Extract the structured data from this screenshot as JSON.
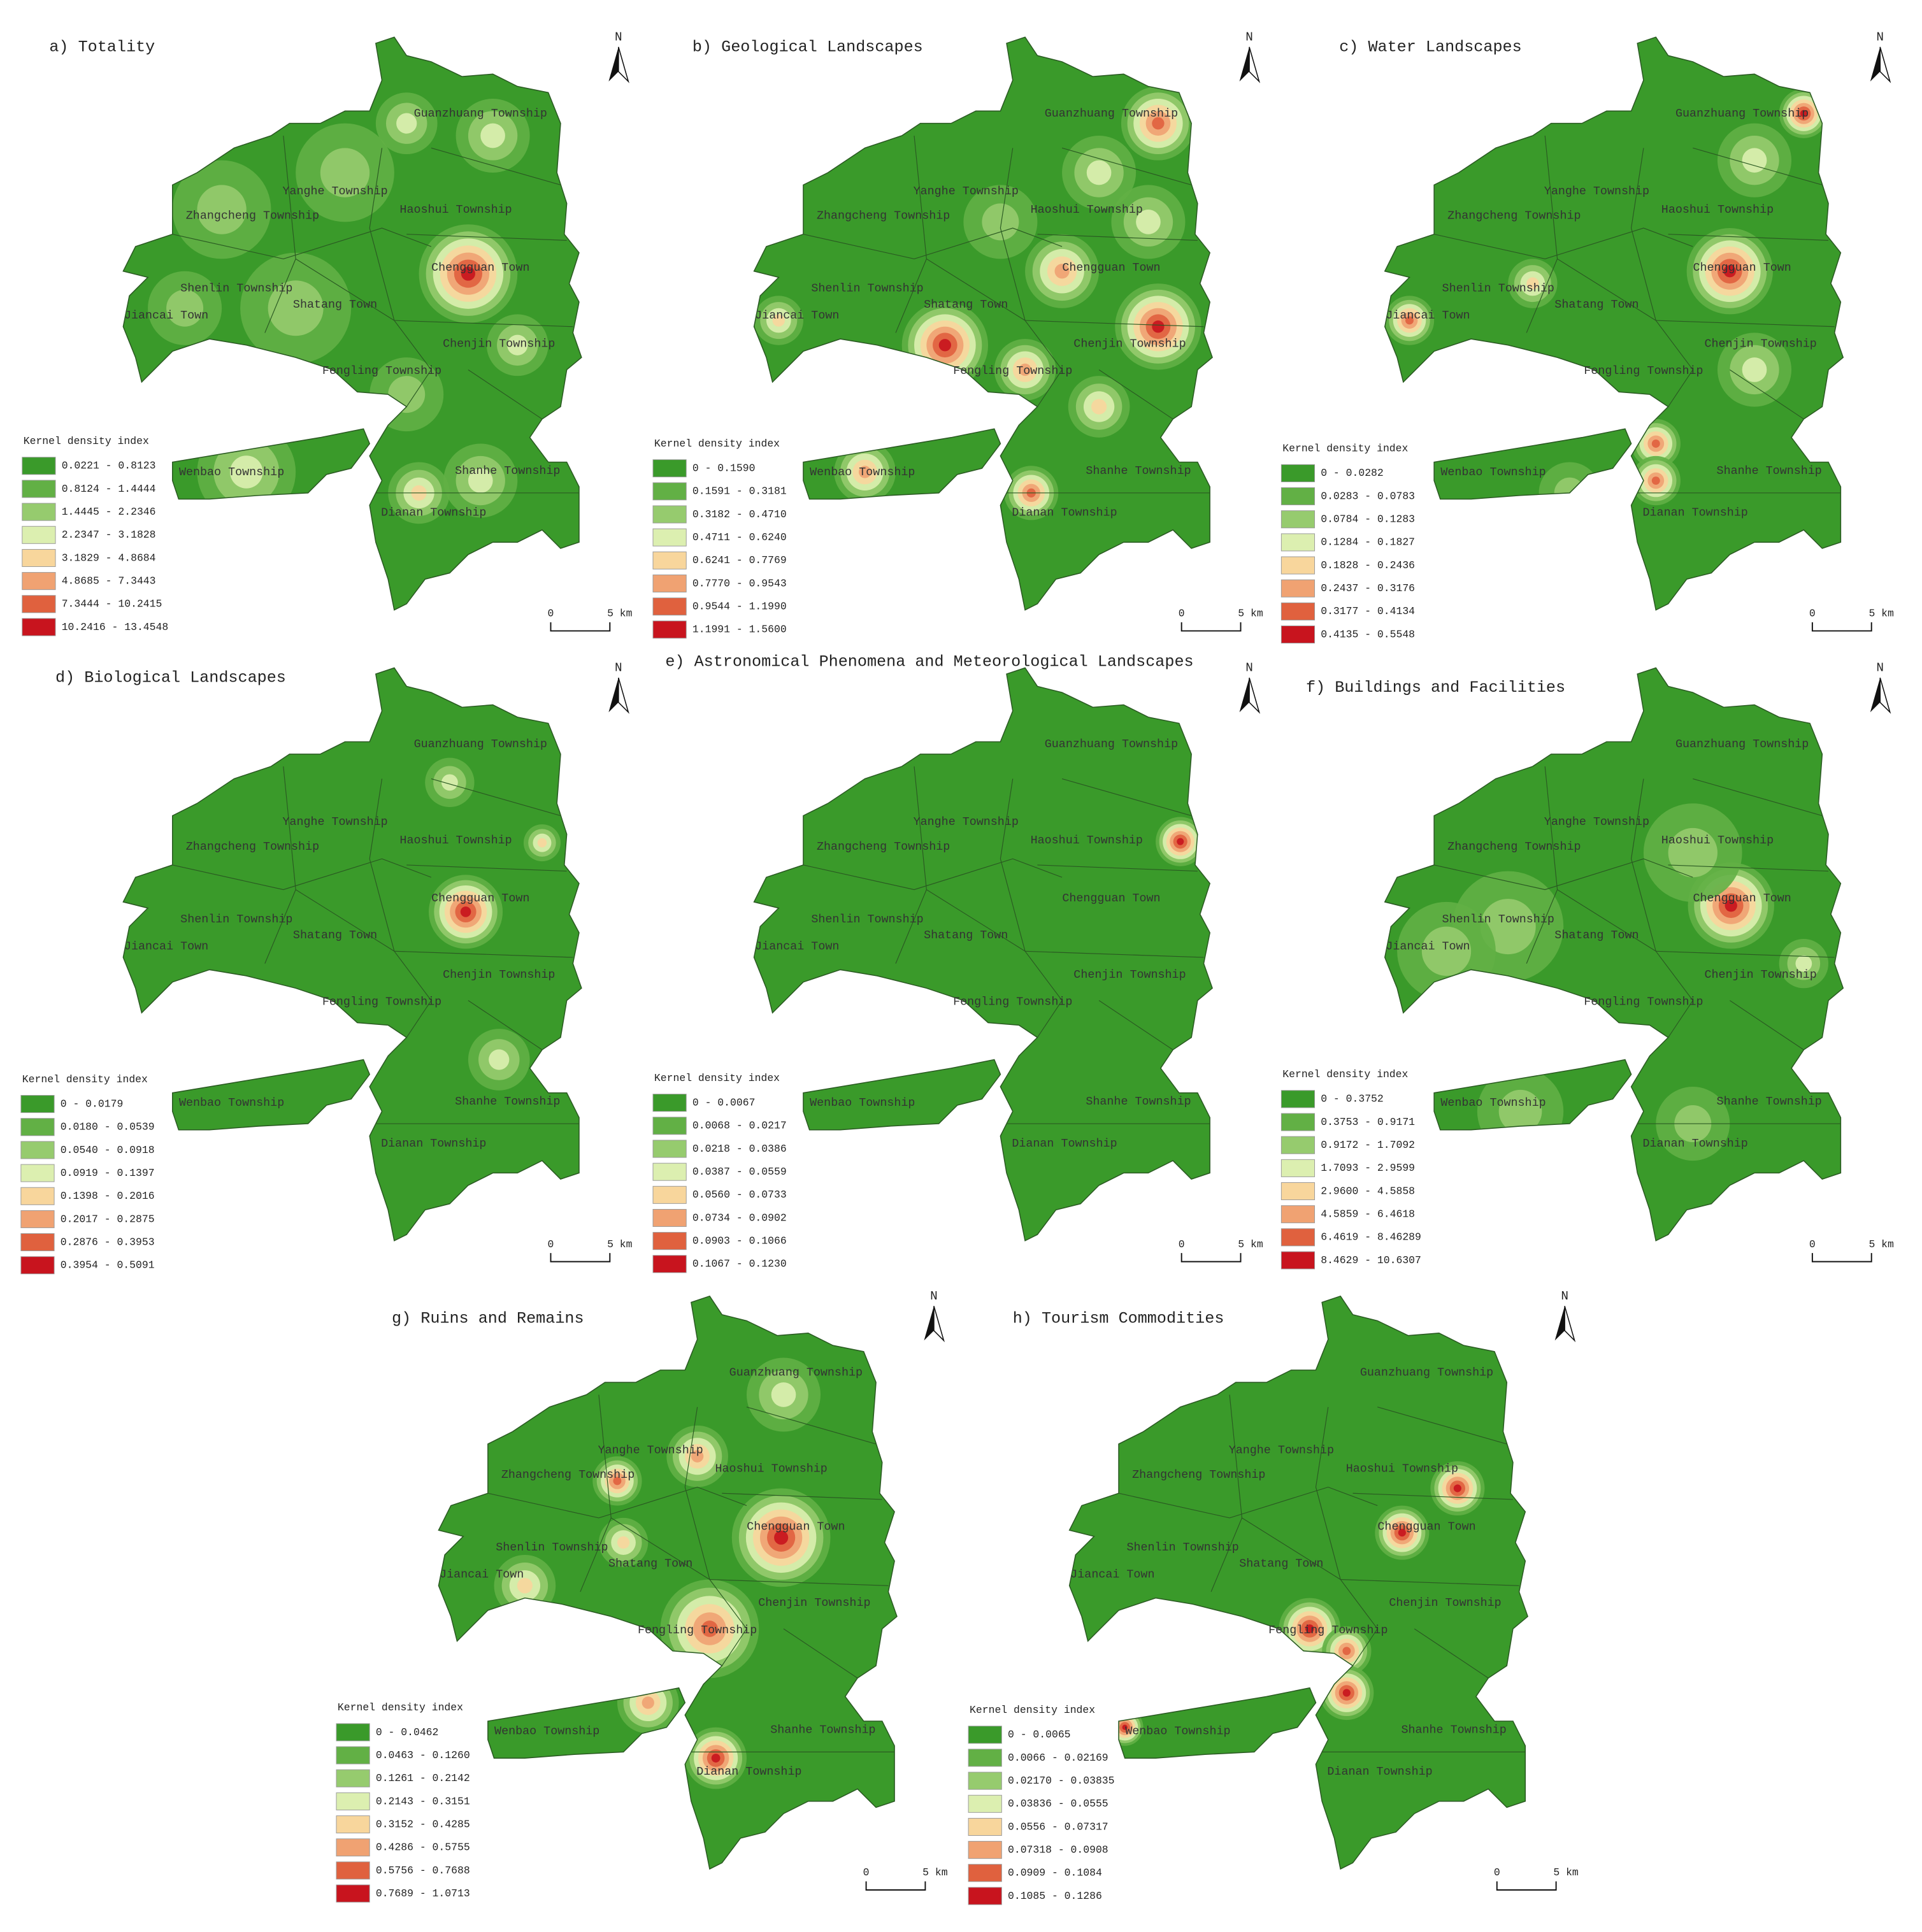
{
  "townships": [
    "Guanzhuang Township",
    "Yanghe Township",
    "Zhangcheng Township",
    "Haoshui Township",
    "Chengguan Town",
    "Shenlin Township",
    "Shatang Town",
    "Jiancai Town",
    "Chenjin Township",
    "Fengling Township",
    "Wenbao Township",
    "Shanhe Township",
    "Dianan Township"
  ],
  "north": "N",
  "scale": {
    "zero": "0",
    "length": "5 km"
  },
  "legend_title": "Kernel density index",
  "legend_colors": [
    "#3a9a2a",
    "#62b045",
    "#96cb6e",
    "#dcefb0",
    "#f8d69c",
    "#f0a272",
    "#e0613e",
    "#c8141e"
  ],
  "panels": [
    {
      "title": "a) Totality",
      "legend": [
        "0.0221 - 0.8123",
        "0.8124 - 1.4444",
        "1.4445 - 2.2346",
        "2.2347 - 3.1828",
        "3.1829 - 4.8684",
        "4.8685 - 7.3443",
        "7.3444 - 10.2415",
        "10.2416 - 13.4548"
      ]
    },
    {
      "title": "b) Geological Landscapes",
      "legend": [
        "0 - 0.1590",
        "0.1591 - 0.3181",
        "0.3182 - 0.4710",
        "0.4711 - 0.6240",
        "0.6241 - 0.7769",
        "0.7770 - 0.9543",
        "0.9544 - 1.1990",
        "1.1991 - 1.5600"
      ]
    },
    {
      "title": "c) Water Landscapes",
      "legend": [
        "0 - 0.0282",
        "0.0283 - 0.0783",
        "0.0784 - 0.1283",
        "0.1284 - 0.1827",
        "0.1828 - 0.2436",
        "0.2437 - 0.3176",
        "0.3177 - 0.4134",
        "0.4135 - 0.5548"
      ]
    },
    {
      "title": "d) Biological Landscapes",
      "legend": [
        "0 - 0.0179",
        "0.0180 - 0.0539",
        "0.0540 - 0.0918",
        "0.0919 - 0.1397",
        "0.1398 - 0.2016",
        "0.2017 - 0.2875",
        "0.2876 - 0.3953",
        "0.3954 - 0.5091"
      ]
    },
    {
      "title": "e) Astronomical Phenomena and Meteorological Landscapes",
      "legend": [
        "0 - 0.0067",
        "0.0068 - 0.0217",
        "0.0218 - 0.0386",
        "0.0387 - 0.0559",
        "0.0560 - 0.0733",
        "0.0734 - 0.0902",
        "0.0903 - 0.1066",
        "0.1067 - 0.1230"
      ]
    },
    {
      "title": "f) Buildings and Facilities",
      "legend": [
        "0 - 0.3752",
        "0.3753 - 0.9171",
        "0.9172 - 1.7092",
        "1.7093 - 2.9599",
        "2.9600 - 4.5858",
        "4.5859 - 6.4618",
        "6.4619 - 8.46289",
        "8.4629 - 10.6307"
      ]
    },
    {
      "title": "g) Ruins and Remains",
      "legend": [
        "0 - 0.0462",
        "0.0463 - 0.1260",
        "0.1261 - 0.2142",
        "0.2143 - 0.3151",
        "0.3152 - 0.4285",
        "0.4286 - 0.5755",
        "0.5756 - 0.7688",
        "0.7689 - 1.0713"
      ]
    },
    {
      "title": "h) Tourism Commodities",
      "legend": [
        "0 - 0.0065",
        "0.0066 - 0.02169",
        "0.02170 - 0.03835",
        "0.03836 - 0.0555",
        "0.0556 - 0.07317",
        "0.07318 - 0.0908",
        "0.0909 - 0.1084",
        "0.1085 - 0.1286"
      ]
    }
  ]
}
